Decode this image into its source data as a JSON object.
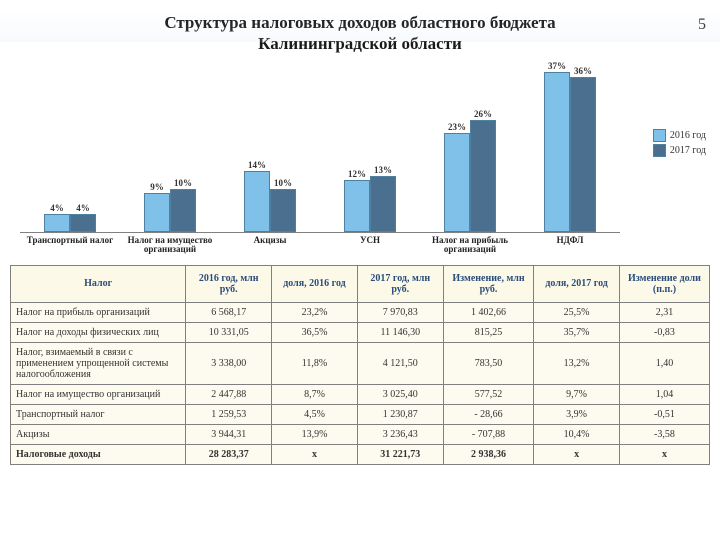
{
  "page_number": "5",
  "title_line1": "Структура налоговых доходов областного бюджета",
  "title_line2": "Калининградской области",
  "chart": {
    "type": "bar",
    "ylim": [
      0,
      40
    ],
    "colors": {
      "2016": "#7fc1e8",
      "2017": "#4a6f8f"
    },
    "legend": [
      {
        "label": "2016 год",
        "color": "#7fc1e8"
      },
      {
        "label": "2017 год",
        "color": "#4a6f8f"
      }
    ],
    "categories": [
      {
        "name": "Транспортный налог",
        "v2016": 4,
        "v2017": 4,
        "l2016": "4%",
        "l2017": "4%"
      },
      {
        "name": "Налог на имущество организаций",
        "v2016": 9,
        "v2017": 10,
        "l2016": "9%",
        "l2017": "10%"
      },
      {
        "name": "Акцизы",
        "v2016": 14,
        "v2017": 10,
        "l2016": "14%",
        "l2017": "10%"
      },
      {
        "name": "УСН",
        "v2016": 12,
        "v2017": 13,
        "l2016": "12%",
        "l2017": "13%"
      },
      {
        "name": "Налог на прибыль организаций",
        "v2016": 23,
        "v2017": 26,
        "l2016": "23%",
        "l2017": "26%"
      },
      {
        "name": "НДФЛ",
        "v2016": 37,
        "v2017": 36,
        "l2016": "37%",
        "l2017": "36%"
      }
    ]
  },
  "table": {
    "columns": [
      "Налог",
      "2016 год, млн руб.",
      "доля, 2016 год",
      "2017 год, млн руб.",
      "Изменение, млн руб.",
      "доля, 2017 год",
      "Изменение доли (п.п.)"
    ],
    "rows": [
      [
        "Налог на прибыль организаций",
        "6 568,17",
        "23,2%",
        "7 970,83",
        "1 402,66",
        "25,5%",
        "2,31"
      ],
      [
        "Налог на доходы физических лиц",
        "10 331,05",
        "36,5%",
        "11 146,30",
        "815,25",
        "35,7%",
        "-0,83"
      ],
      [
        "Налог, взимаемый в связи с применением упрощенной системы налогообложения",
        "3 338,00",
        "11,8%",
        "4 121,50",
        "783,50",
        "13,2%",
        "1,40"
      ],
      [
        "Налог на имущество организаций",
        "2 447,88",
        "8,7%",
        "3 025,40",
        "577,52",
        "9,7%",
        "1,04"
      ],
      [
        "Транспортный налог",
        "1 259,53",
        "4,5%",
        "1 230,87",
        "- 28,66",
        "3,9%",
        "-0,51"
      ],
      [
        "Акцизы",
        "3 944,31",
        "13,9%",
        "3 236,43",
        "- 707,88",
        "10,4%",
        "-3,58"
      ]
    ],
    "total": [
      "Налоговые доходы",
      "28 283,37",
      "х",
      "31 221,73",
      "2 938,36",
      "х",
      "х"
    ]
  }
}
